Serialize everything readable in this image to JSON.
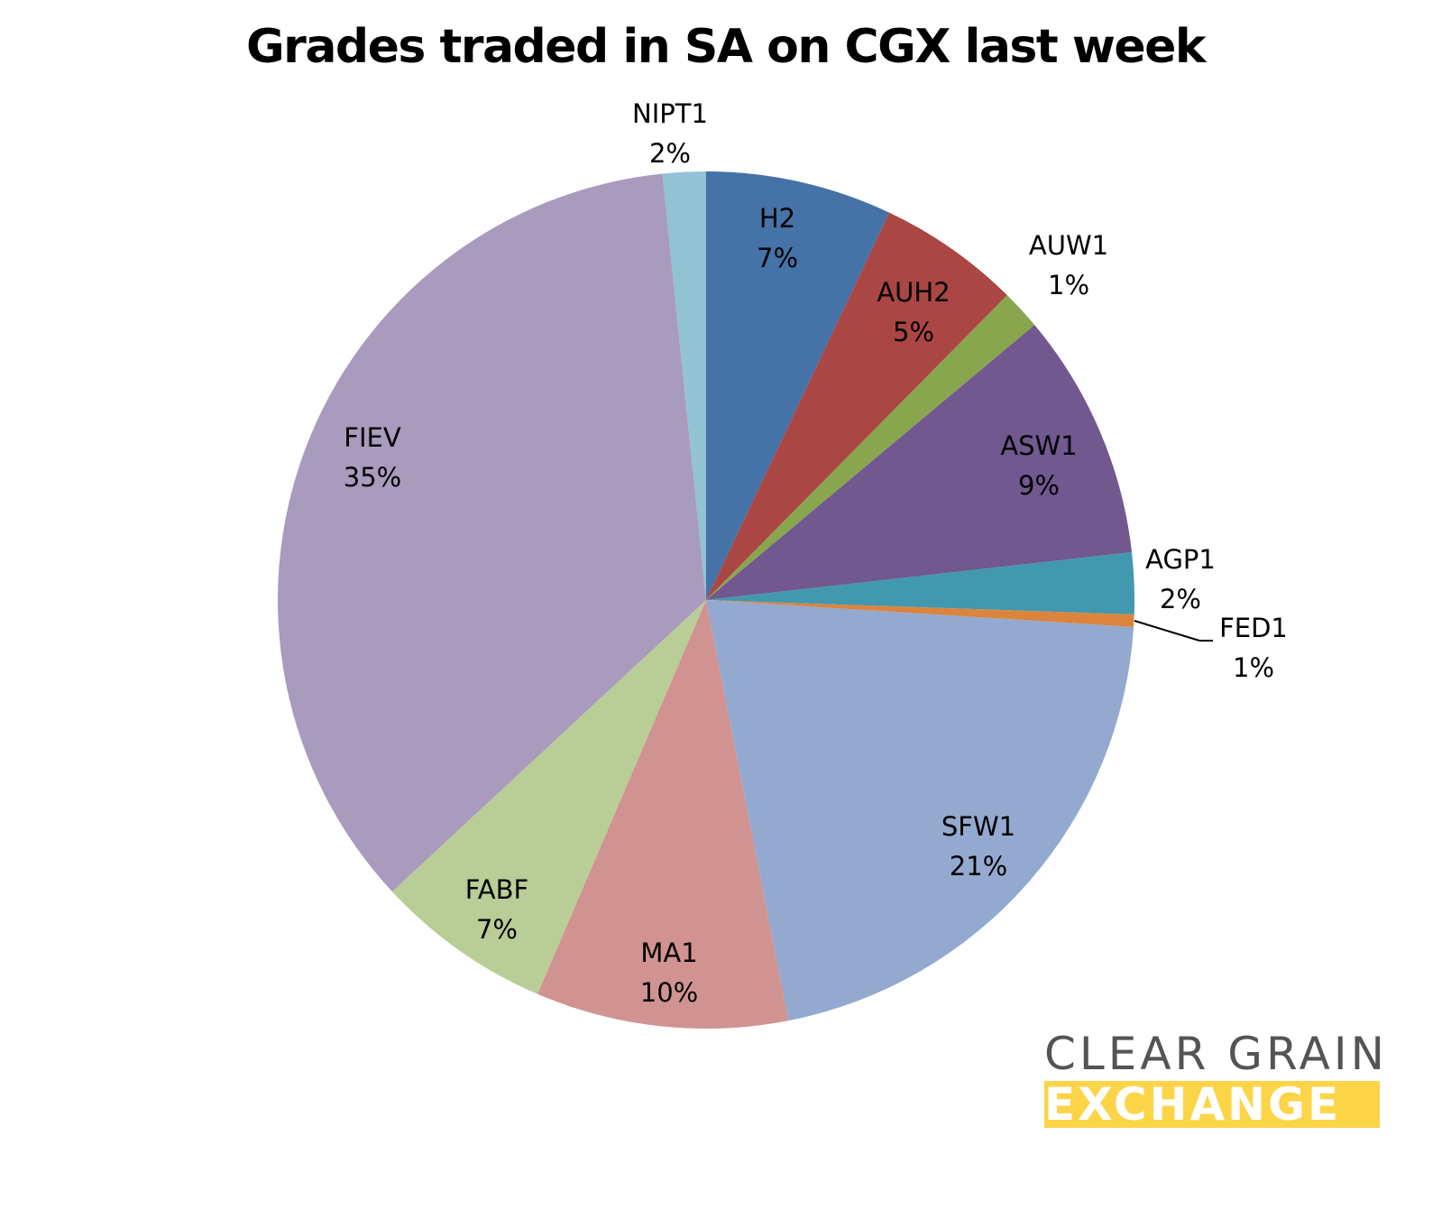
{
  "chart_data": {
    "type": "pie",
    "title": "Grades traded in SA on CGX last week",
    "slices": [
      {
        "label": "H2",
        "value": 7,
        "color": "#4572a7"
      },
      {
        "label": "AUH2",
        "value": 5,
        "color": "#aa4643"
      },
      {
        "label": "AUW1",
        "value": 1,
        "color": "#89a54e"
      },
      {
        "label": "ASW1",
        "value": 9,
        "color": "#71588f"
      },
      {
        "label": "AGP1",
        "value": 2,
        "color": "#4198af"
      },
      {
        "label": "FED1",
        "value": 1,
        "color": "#db843d"
      },
      {
        "label": "SFW1",
        "value": 21,
        "color": "#93a9cf"
      },
      {
        "label": "MA1",
        "value": 10,
        "color": "#d19392"
      },
      {
        "label": "FABF",
        "value": 7,
        "color": "#b9cd96"
      },
      {
        "label": "FIEV",
        "value": 35,
        "color": "#a99bbd"
      },
      {
        "label": "NIPT1",
        "value": 2,
        "color": "#92c3d5"
      }
    ],
    "legend": "none (data labels)",
    "value_format": "percent"
  },
  "labels": {
    "H2": {
      "name": "H2",
      "pct": "7%"
    },
    "AUH2": {
      "name": "AUH2",
      "pct": "5%"
    },
    "AUW1": {
      "name": "AUW1",
      "pct": "1%"
    },
    "ASW1": {
      "name": "ASW1",
      "pct": "9%"
    },
    "AGP1": {
      "name": "AGP1",
      "pct": "2%"
    },
    "FED1": {
      "name": "FED1",
      "pct": "1%"
    },
    "SFW1": {
      "name": "SFW1",
      "pct": "21%"
    },
    "MA1": {
      "name": "MA1",
      "pct": "10%"
    },
    "FABF": {
      "name": "FABF",
      "pct": "7%"
    },
    "FIEV": {
      "name": "FIEV",
      "pct": "35%"
    },
    "NIPT1": {
      "name": "NIPT1",
      "pct": "2%"
    }
  },
  "logo": {
    "line1": "CLEAR GRAIN",
    "line2": "EXCHANGE"
  }
}
